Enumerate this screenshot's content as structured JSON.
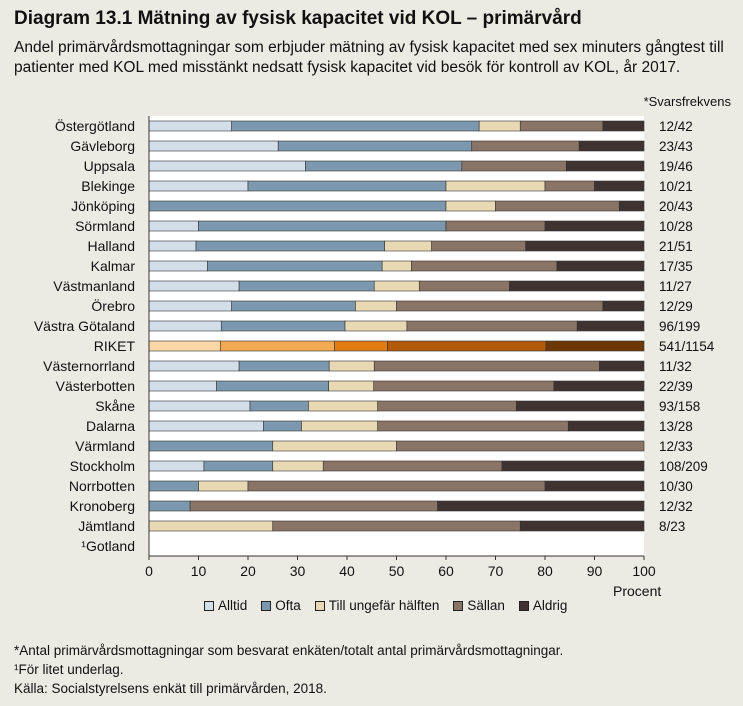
{
  "title": "Diagram 13.1 Mätning av fysisk kapacitet vid KOL – primärvård",
  "subtitle": "Andel primärvårdsmottagningar som erbjuder mätning av fysisk kapacitet med sex minuters gångtest till patienter  med KOL med misstänkt nedsatt fysisk kapacitet vid besök för kontroll av KOL, år 2017.",
  "response_header": "*Svarsfrekvens",
  "footnotes": [
    "*Antal primärvårdsmottagningar som besvarat enkäten/totalt antal primärvårdsmottagningar.",
    "¹För litet underlag.",
    "Källa:  Socialstyrelsens enkät till primärvården, 2018."
  ],
  "colors": {
    "Alltid": "#D3DEEA",
    "Ofta": "#7B98AE",
    "Till ungefär hälften": "#E9D8B4",
    "Sällan": "#8A7466",
    "Aldrig": "#3F3331",
    "riket": [
      "#FAD7A8",
      "#F4A953",
      "#E17B12",
      "#B05A0A",
      "#6E3806"
    ]
  },
  "chart_data": {
    "type": "bar",
    "orientation": "horizontal",
    "stacked": true,
    "xlabel": "Procent",
    "xlim": [
      0,
      100
    ],
    "xticks": [
      0,
      10,
      20,
      30,
      40,
      50,
      60,
      70,
      80,
      90,
      100
    ],
    "legend_position": "bottom",
    "categories": [
      "Östergötland",
      "Gävleborg",
      "Uppsala",
      "Blekinge",
      "Jönköping",
      "Sörmland",
      "Halland",
      "Kalmar",
      "Västmanland",
      "Örebro",
      "Västra Götaland",
      "RIKET",
      "Västernorrland",
      "Västerbotten",
      "Skåne",
      "Dalarna",
      "Värmland",
      "Stockholm",
      "Norrbotten",
      "Kronoberg",
      "Jämtland",
      "¹Gotland"
    ],
    "response_rates": [
      "12/42",
      "23/43",
      "19/46",
      "10/21",
      "20/43",
      "10/28",
      "21/51",
      "17/35",
      "11/27",
      "12/29",
      "96/199",
      "541/1154",
      "11/32",
      "22/39",
      "93/158",
      "13/28",
      "12/33",
      "108/209",
      "10/30",
      "12/32",
      "8/23",
      ""
    ],
    "series": [
      {
        "name": "Alltid",
        "values": [
          16.7,
          26.1,
          31.6,
          20.0,
          0,
          10.0,
          9.5,
          11.8,
          18.2,
          16.7,
          14.6,
          14.4,
          18.2,
          13.6,
          20.4,
          23.1,
          0,
          11.1,
          0,
          0,
          0,
          0
        ]
      },
      {
        "name": "Ofta",
        "values": [
          50.0,
          39.1,
          31.6,
          40.0,
          60.0,
          50.0,
          38.1,
          35.3,
          27.3,
          25.0,
          25.0,
          23.1,
          18.2,
          22.7,
          11.8,
          7.7,
          25.0,
          13.9,
          10.0,
          8.3,
          0,
          0
        ]
      },
      {
        "name": "Till ungefär hälften",
        "values": [
          8.3,
          0,
          0,
          20.0,
          10.0,
          0,
          9.5,
          5.9,
          9.1,
          8.3,
          12.5,
          10.7,
          9.1,
          9.1,
          14.0,
          15.4,
          25.0,
          10.2,
          10.0,
          0,
          25.0,
          0
        ]
      },
      {
        "name": "Sällan",
        "values": [
          16.7,
          21.7,
          21.1,
          10.0,
          25.0,
          20.0,
          19.0,
          29.4,
          18.2,
          41.7,
          34.4,
          32.0,
          45.5,
          36.4,
          28.0,
          38.5,
          50.0,
          36.1,
          60.0,
          50.0,
          50.0,
          0
        ]
      },
      {
        "name": "Aldrig",
        "values": [
          8.3,
          13.1,
          15.7,
          10.0,
          5.0,
          20.0,
          23.9,
          17.6,
          27.2,
          8.3,
          13.5,
          19.8,
          9.0,
          18.2,
          25.8,
          15.3,
          0,
          28.7,
          20.0,
          41.7,
          25.0,
          0
        ]
      }
    ]
  }
}
